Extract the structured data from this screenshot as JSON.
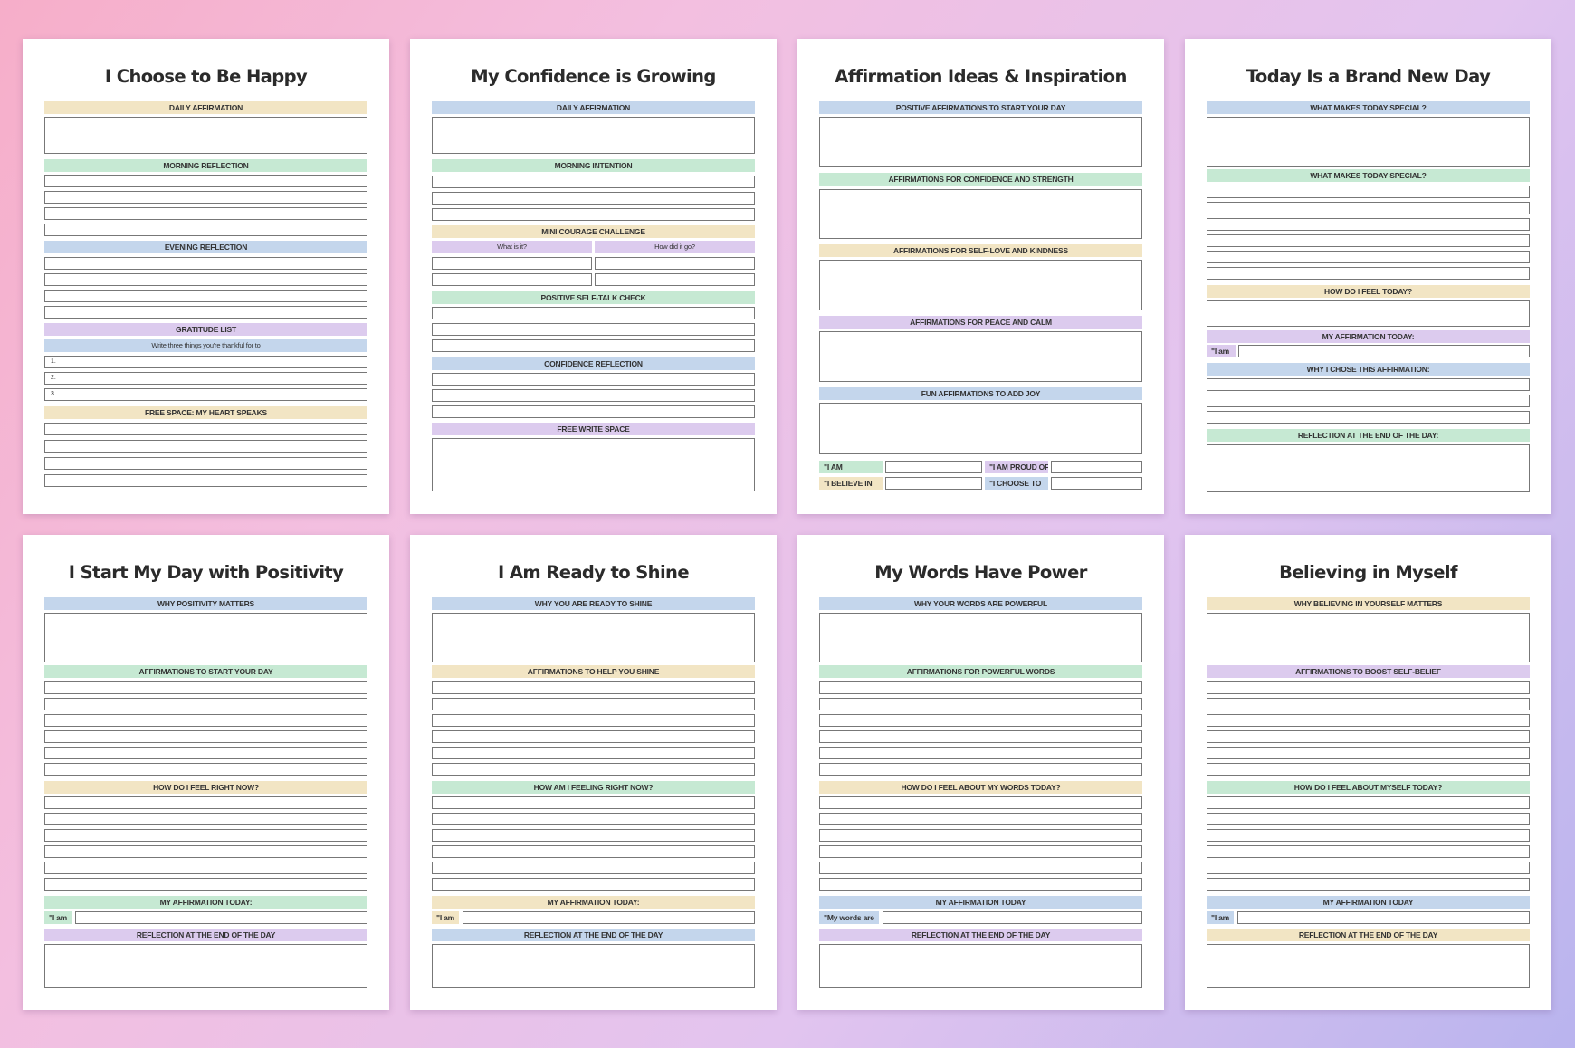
{
  "pages": [
    {
      "title": "I Choose to Be Happy",
      "sections": {
        "daily": "DAILY AFFIRMATION",
        "morning": "MORNING REFLECTION",
        "evening": "EVENING REFLECTION",
        "gratitude": "GRATITUDE LIST",
        "gratitude_sub": "Write three things you're thankful for to",
        "free": "FREE SPACE: MY HEART SPEAKS"
      },
      "numbers": [
        "1.",
        "2.",
        "3."
      ]
    },
    {
      "title": "My Confidence is Growing",
      "sections": {
        "daily": "DAILY AFFIRMATION",
        "intention": "MORNING INTENTION",
        "courage": "MINI COURAGE CHALLENGE",
        "what": "What is it?",
        "how": "How did it go?",
        "selftalk": "POSITIVE SELF-TALK CHECK",
        "confidence": "CONFIDENCE REFLECTION",
        "freewrite": "FREE WRITE SPACE"
      }
    },
    {
      "title": "Affirmation Ideas & Inspiration",
      "sections": {
        "start": "POSITIVE AFFIRMATIONS TO START YOUR DAY",
        "confidence": "AFFIRMATIONS FOR CONFIDENCE AND STRENGTH",
        "selflove": "AFFIRMATIONS FOR SELF-LOVE AND KINDNESS",
        "peace": "AFFIRMATIONS FOR PEACE AND CALM",
        "joy": "FUN AFFIRMATIONS TO ADD JOY",
        "i_am": "\"I AM",
        "i_believe": "\"I BELIEVE IN",
        "i_proud": "\"I AM PROUD OF",
        "i_choose": "\"I CHOOSE TO"
      }
    },
    {
      "title": "Today Is a Brand New Day",
      "sections": {
        "special1": "WHAT MAKES TODAY SPECIAL?",
        "special2": "WHAT MAKES TODAY SPECIAL?",
        "feel": "HOW DO I FEEL TODAY?",
        "affirm": "MY AFFIRMATION TODAY:",
        "iam": "\"I am",
        "why": "WHY I CHOSE THIS AFFIRMATION:",
        "reflection": "REFLECTION AT THE END OF THE DAY:"
      }
    },
    {
      "title": "I Start My Day with Positivity",
      "sections": {
        "why": "WHY POSITIVITY MATTERS",
        "affirmations": "AFFIRMATIONS TO START YOUR DAY",
        "feel": "HOW DO I FEEL RIGHT NOW?",
        "affirm": "MY AFFIRMATION TODAY:",
        "prefix": "\"I am",
        "reflection": "REFLECTION AT THE END OF THE DAY"
      }
    },
    {
      "title": "I Am Ready to Shine",
      "sections": {
        "why": "WHY YOU ARE READY TO SHINE",
        "affirmations": "AFFIRMATIONS TO HELP YOU SHINE",
        "feel": "HOW AM I FEELING RIGHT NOW?",
        "affirm": "MY AFFIRMATION TODAY:",
        "prefix": "\"I am",
        "reflection": "REFLECTION AT THE END OF THE DAY"
      }
    },
    {
      "title": "My Words Have Power",
      "sections": {
        "why": "WHY YOUR WORDS ARE POWERFUL",
        "affirmations": "AFFIRMATIONS FOR POWERFUL WORDS",
        "feel": "HOW DO I FEEL ABOUT MY WORDS TODAY?",
        "affirm": "MY AFFIRMATION TODAY",
        "prefix": "\"My words are",
        "reflection": "REFLECTION AT THE END OF THE DAY"
      }
    },
    {
      "title": "Believing in Myself",
      "sections": {
        "why": "WHY BELIEVING IN YOURSELF MATTERS",
        "affirmations": "AFFIRMATIONS TO BOOST SELF-BELIEF",
        "feel": "HOW DO I FEEL ABOUT MYSELF TODAY?",
        "affirm": "MY AFFIRMATION TODAY",
        "prefix": "\"I am",
        "reflection": "REFLECTION AT THE END OF THE DAY"
      }
    }
  ],
  "colors": {
    "blue": "#c4d6ec",
    "green": "#c6e9d3",
    "yellow": "#f2e5c4",
    "purple": "#dccbee",
    "background_start": "#f6aec9",
    "background_end": "#b9b4ee"
  }
}
